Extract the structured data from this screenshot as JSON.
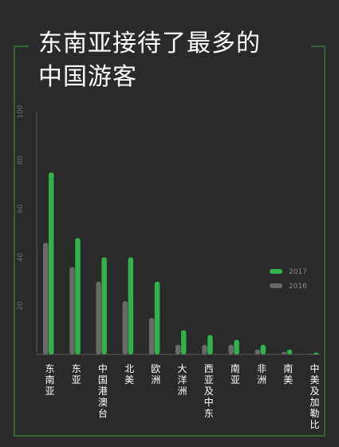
{
  "title_lines": [
    "东南亚接待了最多的",
    "中国游客"
  ],
  "colors": {
    "background": "#2a2a2a",
    "frame": "#3a8a3a",
    "axis": "#5a5a5a",
    "series_2017": "#2fb34a",
    "series_2016": "#6a6a6a",
    "tick_text": "#6e6e6e",
    "category_text": "#ffffff",
    "legend_text": "#8a8a8a"
  },
  "chart_data": {
    "type": "bar",
    "title": "东南亚接待了最多的中国游客",
    "xlabel": "",
    "ylabel": "",
    "ylim": [
      0,
      100
    ],
    "yticks": [
      20,
      40,
      60,
      80,
      100
    ],
    "grid": false,
    "legend_position": "right",
    "categories": [
      "东南亚",
      "东亚",
      "中国港澳台",
      "北美",
      "欧洲",
      "大洋洲",
      "西亚及中东",
      "南亚",
      "非洲",
      "南美",
      "中美及加勒比"
    ],
    "series": [
      {
        "name": "2016",
        "values": [
          46,
          36,
          30,
          22,
          15,
          4,
          4,
          4,
          2,
          1,
          0.3
        ]
      },
      {
        "name": "2017",
        "values": [
          75,
          48,
          40,
          40,
          30,
          10,
          8,
          6,
          4,
          2,
          0.7
        ]
      }
    ]
  }
}
